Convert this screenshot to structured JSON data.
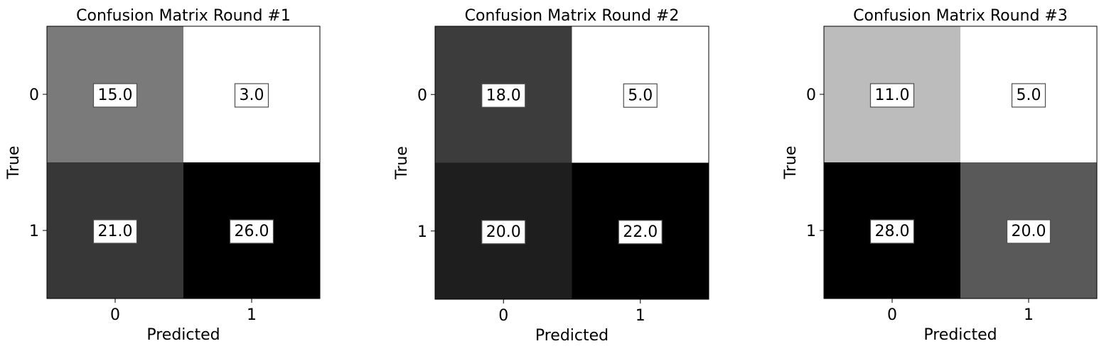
{
  "chart_data": [
    {
      "type": "heatmap",
      "title": "Confusion Matrix Round #1",
      "xlabel": "Predicted",
      "ylabel": "True",
      "x_categories": [
        "0",
        "1"
      ],
      "y_categories": [
        "0",
        "1"
      ],
      "values": [
        [
          15.0,
          3.0
        ],
        [
          21.0,
          26.0
        ]
      ],
      "cell_labels": [
        [
          "15.0",
          "3.0"
        ],
        [
          "21.0",
          "26.0"
        ]
      ],
      "colormap": "white-to-black (higher = darker)",
      "grid": false
    },
    {
      "type": "heatmap",
      "title": "Confusion Matrix Round #2",
      "xlabel": "Predicted",
      "ylabel": "True",
      "x_categories": [
        "0",
        "1"
      ],
      "y_categories": [
        "0",
        "1"
      ],
      "values": [
        [
          18.0,
          5.0
        ],
        [
          20.0,
          22.0
        ]
      ],
      "cell_labels": [
        [
          "18.0",
          "5.0"
        ],
        [
          "20.0",
          "22.0"
        ]
      ],
      "colormap": "white-to-black (higher = darker)",
      "grid": false
    },
    {
      "type": "heatmap",
      "title": "Confusion Matrix Round #3",
      "xlabel": "Predicted",
      "ylabel": "True",
      "x_categories": [
        "0",
        "1"
      ],
      "y_categories": [
        "0",
        "1"
      ],
      "values": [
        [
          11.0,
          5.0
        ],
        [
          28.0,
          20.0
        ]
      ],
      "cell_labels": [
        [
          "11.0",
          "5.0"
        ],
        [
          "28.0",
          "20.0"
        ]
      ],
      "colormap": "white-to-black (higher = darker)",
      "grid": false
    }
  ]
}
